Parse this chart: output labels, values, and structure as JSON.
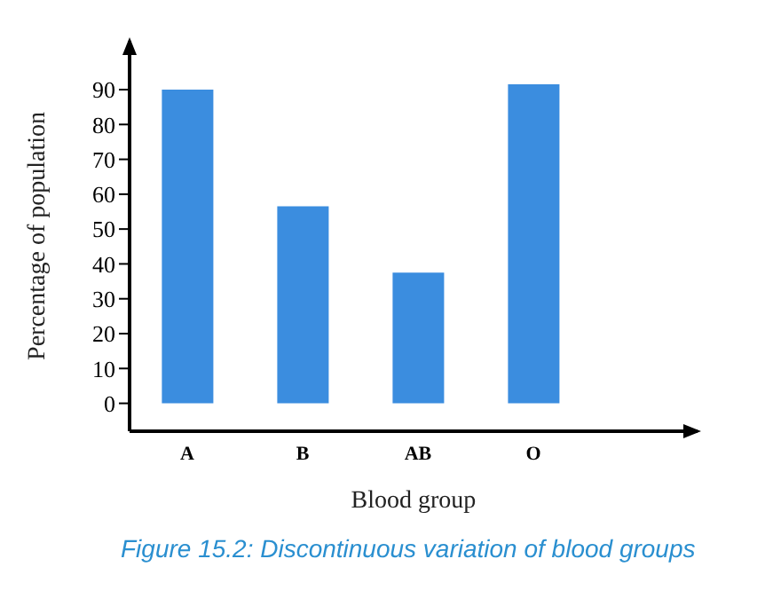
{
  "chart_data": {
    "type": "bar",
    "xlabel": "Blood group",
    "ylabel": "Percentage of population",
    "categories": [
      "A",
      "B",
      "AB",
      "O"
    ],
    "values": [
      90,
      56.5,
      37.5,
      91.5
    ],
    "color": "#3b8ddf",
    "ylim": [
      -8,
      104
    ],
    "yticks": [
      0,
      10,
      20,
      30,
      40,
      50,
      60,
      70,
      80,
      90
    ],
    "grid": false,
    "annotations": [
      "Figure 15.2: Discontinuous variation of blood groups"
    ]
  }
}
